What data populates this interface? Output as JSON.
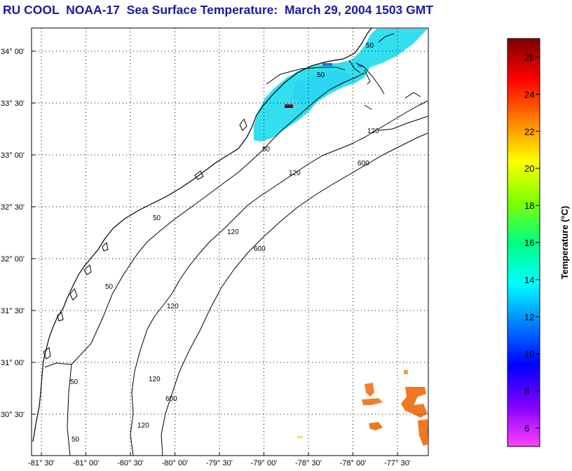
{
  "title": "RU COOL  NOAA-17  Sea Surface Temperature:  March 29, 2004 1503 GMT",
  "colors": {
    "title": "#1a1aa0",
    "ocean": "#ffffff",
    "grid": "#000000",
    "contour": "#000000"
  },
  "map": {
    "lat_ticks": [
      "34° 00'",
      "33° 30'",
      "33° 00'",
      "32° 30'",
      "32° 00'",
      "31° 30'",
      "31° 00'",
      "30° 30'"
    ],
    "lon_ticks": [
      "-81° 30'",
      "-81° 00'",
      "-80° 30'",
      "-80° 00'",
      "-79° 30'",
      "-79° 00'",
      "-78° 30'",
      "-78° 00'",
      "-77° 30'"
    ],
    "contour_labels": [
      {
        "text": "50",
        "kind": "isobath-50"
      },
      {
        "text": "50",
        "kind": "isobath-50"
      },
      {
        "text": "50",
        "kind": "isobath-50"
      },
      {
        "text": "50",
        "kind": "isobath-50"
      },
      {
        "text": "50",
        "kind": "isobath-50"
      },
      {
        "text": "50",
        "kind": "isobath-50"
      },
      {
        "text": "50",
        "kind": "isobath-50"
      },
      {
        "text": "120",
        "kind": "isobath-120"
      },
      {
        "text": "120",
        "kind": "isobath-120"
      },
      {
        "text": "120",
        "kind": "isobath-120"
      },
      {
        "text": "120",
        "kind": "isobath-120"
      },
      {
        "text": "120",
        "kind": "isobath-120"
      },
      {
        "text": "120",
        "kind": "isobath-120"
      },
      {
        "text": "600",
        "kind": "isobath-600"
      },
      {
        "text": "600",
        "kind": "isobath-600"
      },
      {
        "text": "600",
        "kind": "isobath-600"
      }
    ]
  },
  "colorbar": {
    "title": "Temperature (°C)",
    "min": 5,
    "max": 27,
    "ticks": [
      "6",
      "8",
      "10",
      "12",
      "14",
      "16",
      "18",
      "20",
      "22",
      "24",
      "26"
    ],
    "stops": [
      "#ff40ff",
      "#8000ff",
      "#0000ff",
      "#0080ff",
      "#00ffff",
      "#00ff80",
      "#80ff00",
      "#ffff00",
      "#ff8000",
      "#ff0000",
      "#800000"
    ]
  }
}
